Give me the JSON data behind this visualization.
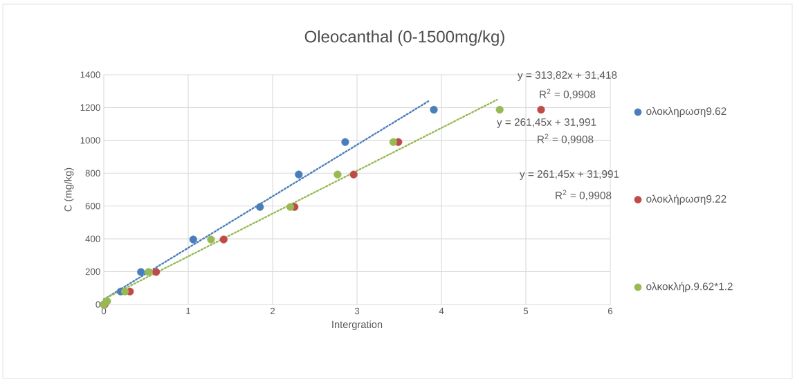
{
  "chart_data": {
    "type": "scatter",
    "title": "Oleocanthal (0-1500mg/kg)",
    "xlabel": "Intergration",
    "ylabel": "C (mg/kg)",
    "xlim": [
      0,
      6
    ],
    "ylim": [
      0,
      1400
    ],
    "xticks": [
      0,
      1,
      2,
      3,
      4,
      5,
      6
    ],
    "yticks": [
      0,
      200,
      400,
      600,
      800,
      1000,
      1200,
      1400
    ],
    "grid": true,
    "legend": "right",
    "marker": "circle",
    "series": [
      {
        "name": "ολοκληρωση9.62",
        "color": "#4a7ebb",
        "x": [
          0,
          0.03,
          0.2,
          0.44,
          1.06,
          1.85,
          2.31,
          2.86,
          3.91
        ],
        "values": [
          0,
          null,
          79,
          198,
          396,
          594,
          792,
          990,
          1187
        ]
      },
      {
        "name": "ολοκλήρωση9.22",
        "color": "#be4b48",
        "x": [
          0.01,
          0.05,
          0.31,
          0.62,
          1.42,
          2.26,
          2.96,
          3.49,
          5.18
        ],
        "values": [
          0,
          null,
          79,
          198,
          396,
          594,
          792,
          990,
          1187
        ]
      },
      {
        "name": "ολκοκλήρ.9.62*1.2",
        "color": "#98b954",
        "x": [
          0,
          0.04,
          0.25,
          0.53,
          1.27,
          2.21,
          2.77,
          3.43,
          4.69
        ],
        "values": [
          0,
          20,
          79,
          198,
          396,
          594,
          792,
          990,
          1187
        ]
      },
      {
        "type": "line",
        "line_style": "dotted",
        "marker": "none",
        "color": "#4a7ebb",
        "x": [
          0,
          3.85
        ],
        "values": [
          31,
          1240
        ]
      },
      {
        "type": "line",
        "line_style": "dotted",
        "marker": "none",
        "color": "#98b954",
        "x": [
          0,
          4.66
        ],
        "values": [
          32,
          1248
        ]
      }
    ],
    "annotations": [
      "y = 313,82x + 31,418",
      "R$^{2}$ = 0,9908",
      "y = 261,45x + 31,991",
      "R$^{2}$ = 0,9908",
      "y = 261,45x + 31,991",
      "R$^{2}$ = 0,9908"
    ]
  }
}
